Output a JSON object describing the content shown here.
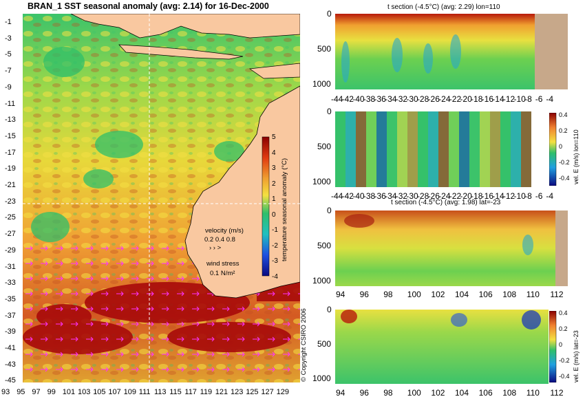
{
  "main_map": {
    "title": "BRAN_1  SST seasonal anomaly  (avg: 2.14)  for 16-Dec-2000",
    "lat_ticks": [
      "-1",
      "-3",
      "-5",
      "-7",
      "-9",
      "-11",
      "-13",
      "-15",
      "-17",
      "-19",
      "-21",
      "-23",
      "-25",
      "-27",
      "-29",
      "-31",
      "-33",
      "-35",
      "-37",
      "-39",
      "-41",
      "-43",
      "-45"
    ],
    "lon_ticks": [
      "93",
      "95",
      "97",
      "99",
      "101",
      "103",
      "105",
      "107",
      "109",
      "111",
      "113",
      "115",
      "117",
      "119",
      "121",
      "123",
      "125",
      "127",
      "129"
    ],
    "colorbar": {
      "label": "temperature seasonal anomaly (°C)",
      "ticks": [
        "5",
        "4",
        "3",
        "2",
        "1",
        "0",
        "-1",
        "-2",
        "-3",
        "-4"
      ]
    },
    "velocity_legend": {
      "title": "velocity (m/s)",
      "values": "0.2 0.4 0.8",
      "arrows": "›  ›  >"
    },
    "wind_legend": {
      "title": "wind stress",
      "value": "0.1 N/m²"
    },
    "copyright": "© Copyright CSIRO 2006",
    "colors": {
      "land": "#f9c8a0",
      "arrow": "#ff33ff",
      "crosshair": "#ffffff"
    }
  },
  "panels": [
    {
      "title": "t section (-4.5°C) (avg: 2.29) lon=110",
      "x_ticks": [
        "-44",
        "-42",
        "-40",
        "-38",
        "-36",
        "-34",
        "-32",
        "-30",
        "-28",
        "-26",
        "-24",
        "-22",
        "-20",
        "-18",
        "-16",
        "-14",
        "-12",
        "-10",
        "-8",
        "-6",
        "-4"
      ],
      "y_ticks": [
        "0",
        "500",
        "1000"
      ],
      "colorbar_label": "",
      "cb_ticks": []
    },
    {
      "title": "",
      "x_ticks": [
        "-44",
        "-42",
        "-40",
        "-38",
        "-36",
        "-34",
        "-32",
        "-30",
        "-28",
        "-26",
        "-24",
        "-22",
        "-20",
        "-18",
        "-16",
        "-14",
        "-12",
        "-10",
        "-8",
        "-6",
        "-4"
      ],
      "y_ticks": [
        "0",
        "500",
        "1000"
      ],
      "colorbar_label": "vel. E (m/s) lon=110",
      "cb_ticks": [
        "0.4",
        "0.2",
        "0",
        "-0.2",
        "-0.4"
      ]
    },
    {
      "title": "t section (-4.5°C) (avg: 1.98) lat=-23",
      "x_ticks": [
        "94",
        "96",
        "98",
        "100",
        "102",
        "104",
        "106",
        "108",
        "110",
        "112"
      ],
      "y_ticks": [
        "0",
        "500",
        "1000"
      ],
      "colorbar_label": "",
      "cb_ticks": []
    },
    {
      "title": "",
      "x_ticks": [
        "94",
        "96",
        "98",
        "100",
        "102",
        "104",
        "106",
        "108",
        "110",
        "112"
      ],
      "y_ticks": [
        "0",
        "500",
        "1000"
      ],
      "colorbar_label": "vel. E (m/s) lat=-23",
      "cb_ticks": [
        "0.4",
        "0.2",
        "0",
        "-0.2",
        "-0.4"
      ]
    }
  ]
}
